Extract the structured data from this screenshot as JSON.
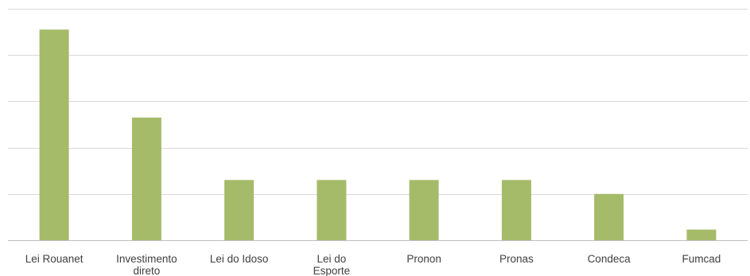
{
  "chart_data": {
    "type": "bar",
    "categories": [
      [
        "Lei Rouanet"
      ],
      [
        "Investimento",
        "direto"
      ],
      [
        "Lei do Idoso"
      ],
      [
        "Lei do",
        "Esporte"
      ],
      [
        "Pronon"
      ],
      [
        "Pronas"
      ],
      [
        "Condeca"
      ],
      [
        "Fumcad"
      ]
    ],
    "values": [
      45.5,
      26.5,
      13,
      13,
      13,
      13,
      10,
      2.3
    ],
    "ylim": [
      0,
      50
    ],
    "yticks": [
      0,
      10,
      20,
      30,
      40,
      50
    ],
    "grid": true,
    "legend": "none",
    "title": "",
    "xlabel": "",
    "ylabel": ""
  },
  "colors": {
    "bar": "#a5bb6a",
    "grid": "#d9d9d9",
    "axis": "#bfbfbf",
    "label": "#404040"
  }
}
